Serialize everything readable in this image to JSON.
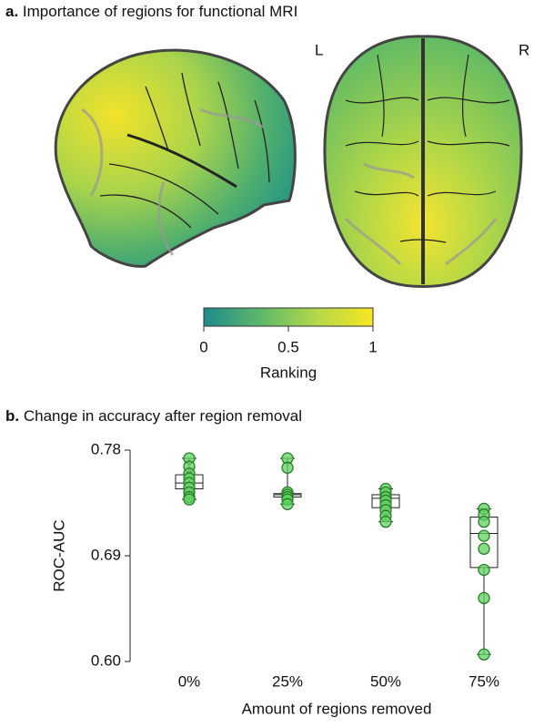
{
  "panel_a": {
    "label": "a.",
    "title": "Importance of regions for functional MRI",
    "hemisphere_labels": [
      "L",
      "R"
    ],
    "colorbar": {
      "label": "Ranking",
      "lim": [
        0,
        1
      ],
      "ticks": [
        0,
        0.5,
        1
      ],
      "colors": [
        "#1f8a8c",
        "#5cb86a",
        "#b4d84a",
        "#f8e621"
      ]
    }
  },
  "chart_data": {
    "type": "box",
    "label": "b.",
    "title": "Change in accuracy after region removal",
    "x_label": "Amount of regions removed",
    "y_label": "ROC-AUC",
    "categories": [
      "0%",
      "25%",
      "50%",
      "75%"
    ],
    "ylim": [
      0.6,
      0.78
    ],
    "yticks": [
      {
        "value": 0.6,
        "label": "0.60"
      },
      0.69,
      0.78
    ],
    "point_color": "#5fd35f",
    "points": [
      [
        0.773,
        0.766,
        0.76,
        0.756,
        0.752,
        0.748,
        0.744,
        0.74,
        0.738
      ],
      [
        0.773,
        0.765,
        0.744,
        0.742,
        0.74,
        0.738,
        0.734
      ],
      [
        0.747,
        0.744,
        0.74,
        0.737,
        0.733,
        0.729,
        0.724,
        0.719
      ],
      [
        0.73,
        0.725,
        0.719,
        0.707,
        0.696,
        0.678,
        0.654,
        0.606
      ]
    ],
    "boxes": [
      {
        "whisker_low": 0.738,
        "q1": 0.747,
        "median": 0.752,
        "q3": 0.759,
        "whisker_high": 0.773
      },
      {
        "whisker_low": 0.734,
        "q1": 0.74,
        "median": 0.742,
        "q3": 0.743,
        "whisker_high": 0.773
      },
      {
        "whisker_low": 0.719,
        "q1": 0.731,
        "median": 0.739,
        "q3": 0.742,
        "whisker_high": 0.747
      },
      {
        "whisker_low": 0.606,
        "q1": 0.68,
        "median": 0.709,
        "q3": 0.723,
        "whisker_high": 0.73
      }
    ]
  }
}
